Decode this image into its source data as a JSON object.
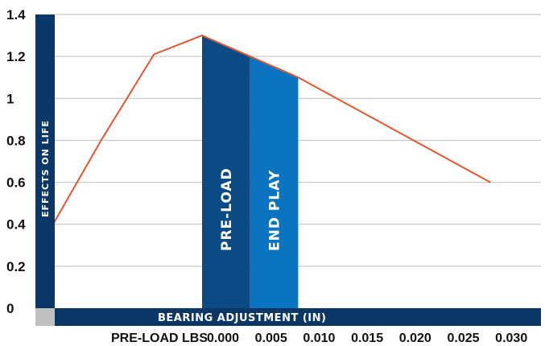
{
  "chart_data": {
    "type": "line",
    "title": "",
    "ylabel": "EFFECTS ON LIFE",
    "xlabel": "BEARING ADJUSTMENT (IN)",
    "ylim": [
      0,
      1.4
    ],
    "yticks": [
      "0",
      "0.2",
      "0.4",
      "0.6",
      "0.8",
      "1",
      "1.2",
      "1.4"
    ],
    "grid": true,
    "x_row_label": "PRE-LOAD LBS",
    "x_tick_labels": [
      "0.000",
      "0.005",
      "0.010",
      "0.015",
      "0.020",
      "0.025",
      "0.030"
    ],
    "series": [
      {
        "color": "#e8542a",
        "points": [
          {
            "x": -0.0155,
            "y": 0.4
          },
          {
            "x": -0.0105,
            "y": 0.8
          },
          {
            "x": -0.005,
            "y": 1.21
          },
          {
            "x": 0.0,
            "y": 1.3
          },
          {
            "x": 0.005,
            "y": 1.2
          },
          {
            "x": 0.01,
            "y": 1.1
          },
          {
            "x": 0.03,
            "y": 0.6
          }
        ]
      }
    ],
    "bands": [
      {
        "label": "PRE-LOAD",
        "x_start": 0.0,
        "x_end": 0.005,
        "color": "#0b4a85"
      },
      {
        "label": "END PLAY",
        "x_start": 0.005,
        "x_end": 0.01,
        "color": "#0a74c1"
      }
    ],
    "colors": {
      "dark_bar": "#0b3766",
      "grid": "#bfbfbf",
      "corner": "#c0c0c0"
    }
  }
}
